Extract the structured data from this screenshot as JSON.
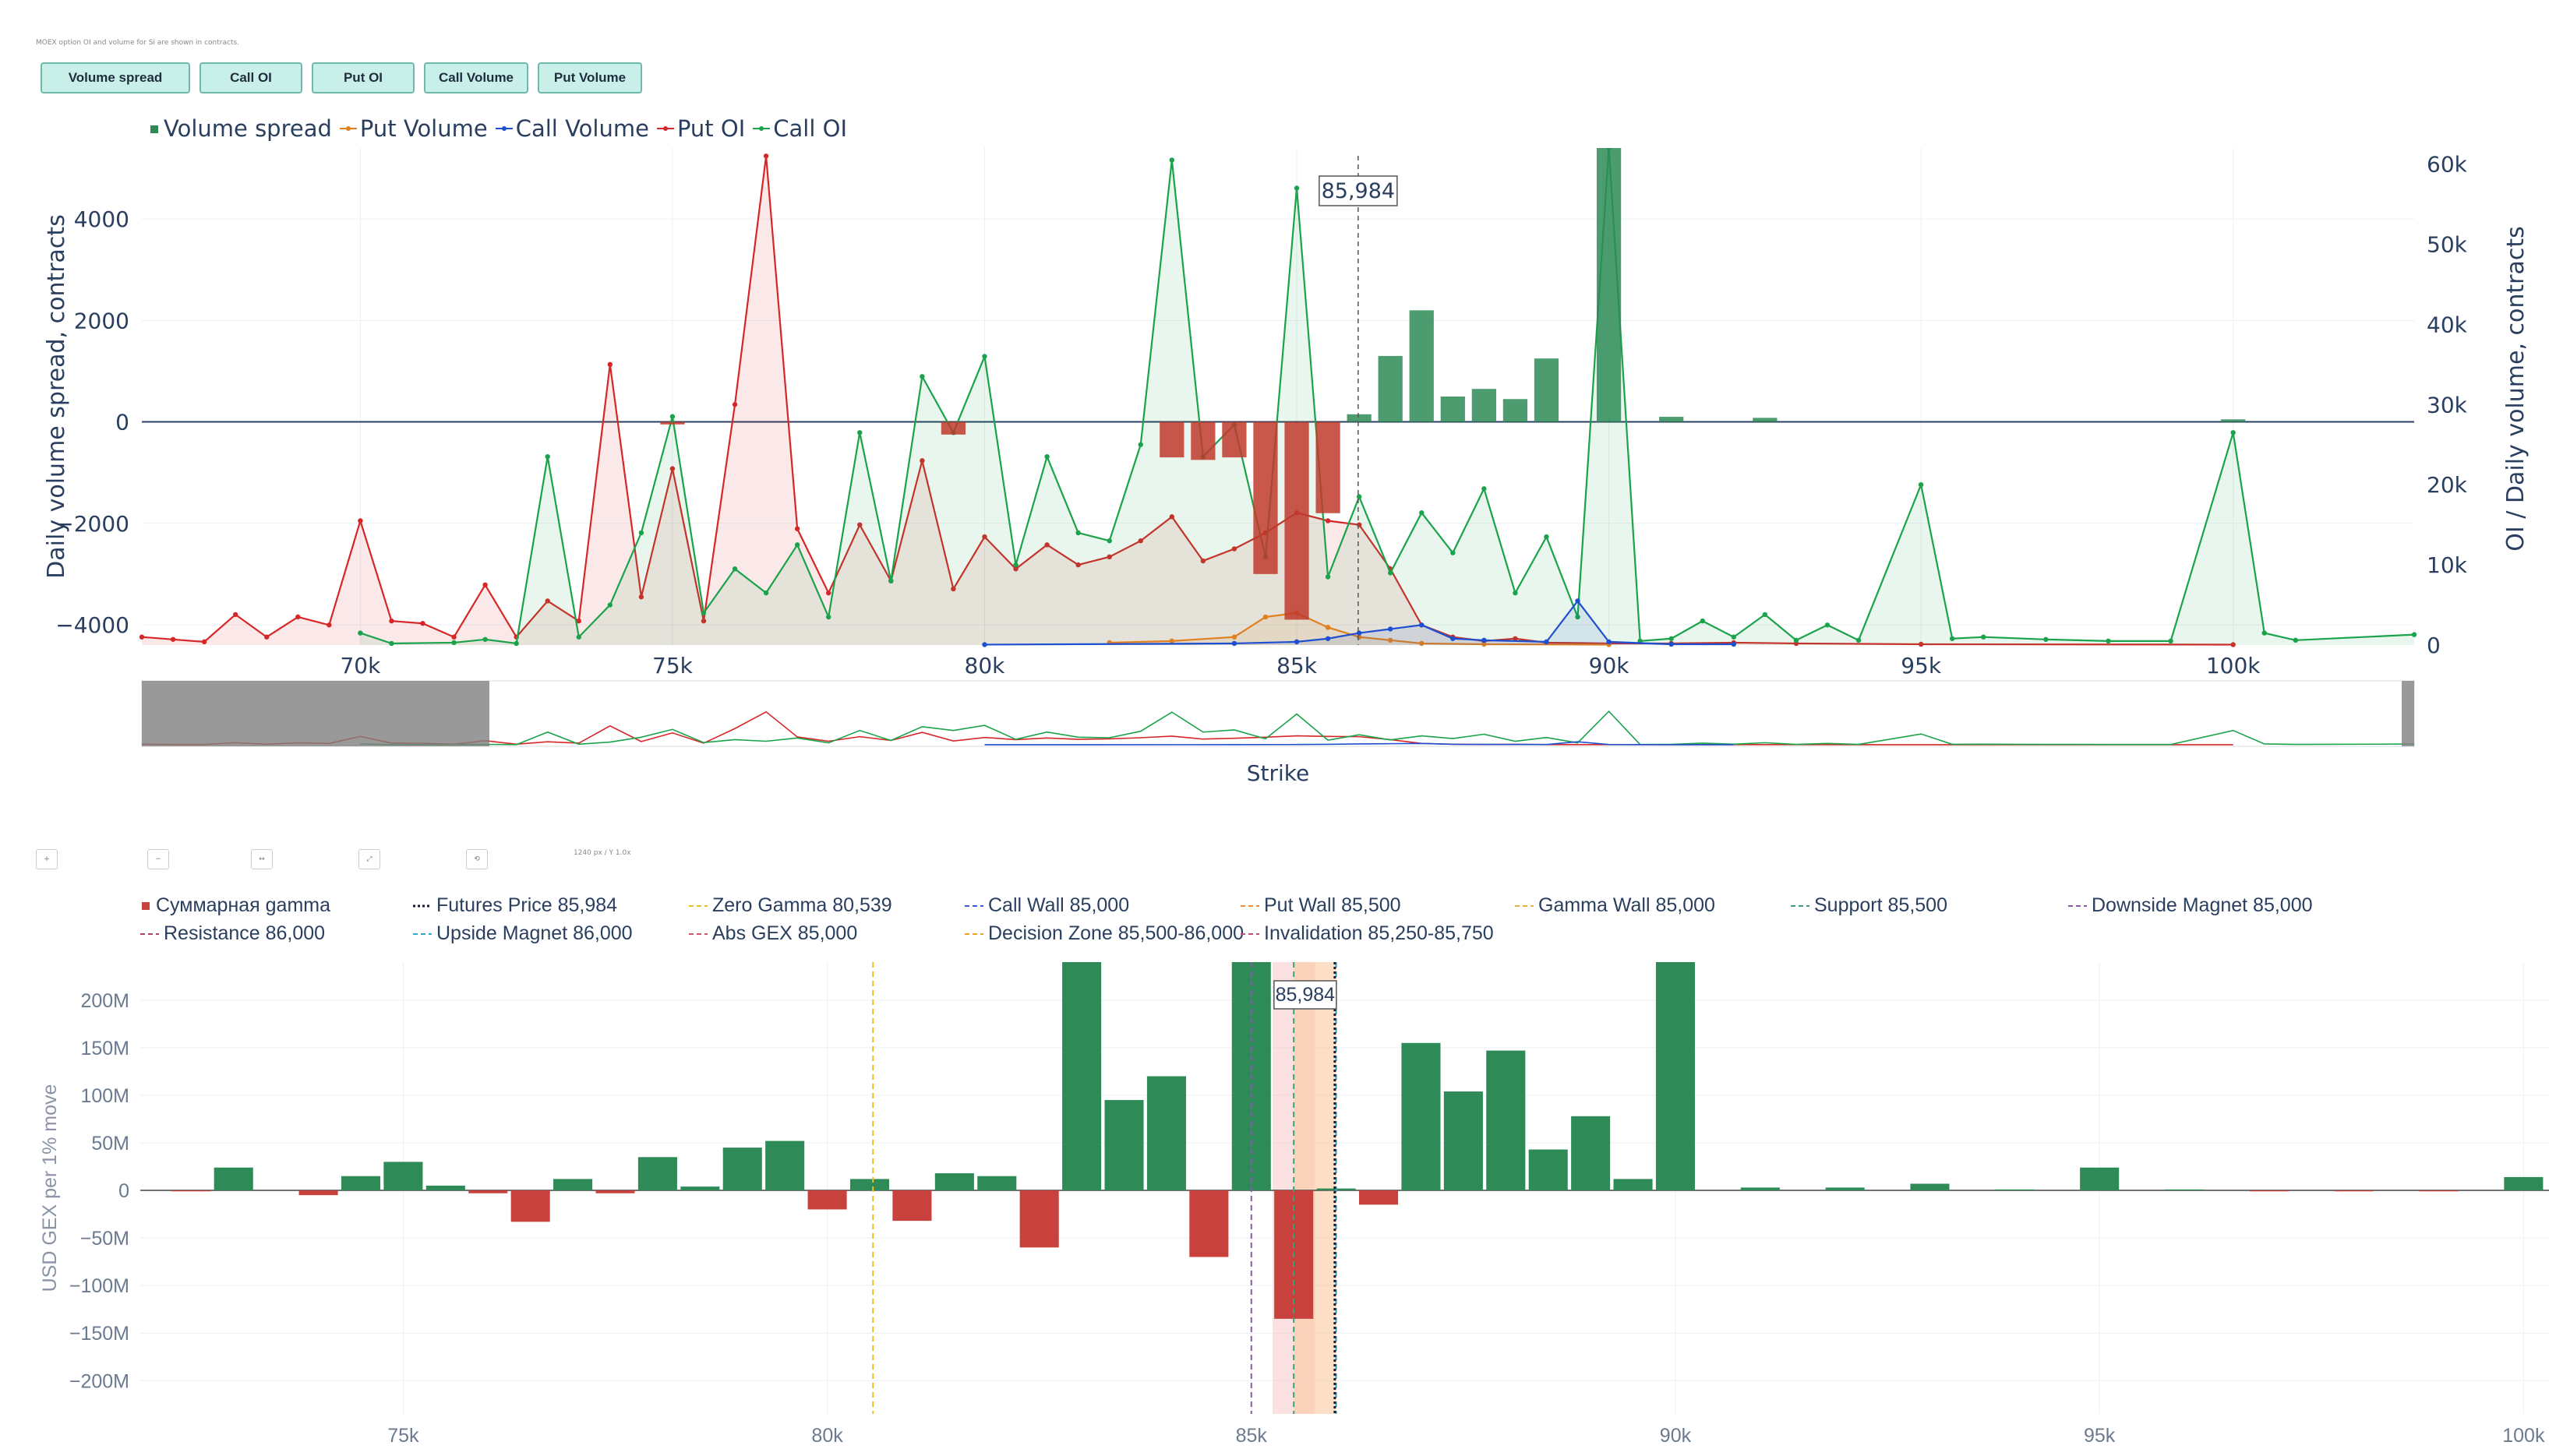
{
  "note": "MOEX option OI and volume for Si are shown in contracts.",
  "buttons": [
    "Volume spread",
    "Call OI",
    "Put OI",
    "Call Volume",
    "Put Volume"
  ],
  "colors": {
    "spread_pos": "#2e8b57",
    "spread_neg": "#c0392b",
    "put": "#d62728",
    "call": "#1aa34a",
    "put_vol": "#e0801f",
    "call_vol": "#1f4fd1",
    "gamma_pos": "#2e8b57",
    "gamma_neg": "#c9413c"
  },
  "icons": [
    "zoom-in-icon",
    "zoom-out-icon",
    "pan-icon",
    "autoscale-icon",
    "reset-icon"
  ],
  "controls_note": "1240 px / Y 1.0x",
  "chart_data": [
    {
      "type": "line",
      "legend": [
        "Volume spread",
        "Put Volume",
        "Call Volume",
        "Put OI",
        "Call OI"
      ],
      "xlabel": "Strike",
      "ylabel": "Daily volume spread, contracts",
      "y2label": "OI / Daily volume, contracts",
      "xlim": [
        66500,
        102900
      ],
      "ylim": [
        -4400,
        5400
      ],
      "y2lim": [
        0,
        62000
      ],
      "xticks": [
        "70k",
        "75k",
        "80k",
        "85k",
        "90k",
        "95k",
        "100k"
      ],
      "yticks": [
        "4000",
        "2000",
        "0",
        "−2000",
        "−4000"
      ],
      "y2ticks": [
        "60k",
        "50k",
        "40k",
        "30k",
        "20k",
        "10k",
        "0"
      ],
      "spot_label": "85,984",
      "spot": 85984,
      "spread": [
        [
          75000,
          -50
        ],
        [
          79500,
          -250
        ],
        [
          83000,
          -700
        ],
        [
          83500,
          -750
        ],
        [
          84000,
          -700
        ],
        [
          84500,
          -3000
        ],
        [
          85000,
          -3900
        ],
        [
          85500,
          -1800
        ],
        [
          86000,
          150
        ],
        [
          86500,
          1300
        ],
        [
          87000,
          2200
        ],
        [
          87500,
          500
        ],
        [
          88000,
          650
        ],
        [
          88500,
          450
        ],
        [
          89000,
          1250
        ],
        [
          90000,
          5400
        ],
        [
          91000,
          100
        ],
        [
          92500,
          80
        ],
        [
          100000,
          50
        ]
      ],
      "put_oi": [
        [
          66500,
          1000
        ],
        [
          67000,
          700
        ],
        [
          67500,
          400
        ],
        [
          68000,
          3800
        ],
        [
          68500,
          1000
        ],
        [
          69000,
          3500
        ],
        [
          69500,
          2500
        ],
        [
          70000,
          15500
        ],
        [
          70500,
          3000
        ],
        [
          71000,
          2700
        ],
        [
          71500,
          1000
        ],
        [
          72000,
          7500
        ],
        [
          72500,
          1000
        ],
        [
          73000,
          5500
        ],
        [
          73500,
          3000
        ],
        [
          74000,
          35000
        ],
        [
          74500,
          6000
        ],
        [
          75000,
          22000
        ],
        [
          75500,
          3000
        ],
        [
          76000,
          30000
        ],
        [
          76500,
          61000
        ],
        [
          77000,
          14500
        ],
        [
          77500,
          6500
        ],
        [
          78000,
          15000
        ],
        [
          78500,
          8000
        ],
        [
          79000,
          23000
        ],
        [
          79500,
          7000
        ],
        [
          80000,
          13500
        ],
        [
          80500,
          9500
        ],
        [
          81000,
          12500
        ],
        [
          81500,
          10000
        ],
        [
          82000,
          11000
        ],
        [
          82500,
          13000
        ],
        [
          83000,
          16000
        ],
        [
          83500,
          10500
        ],
        [
          84000,
          12000
        ],
        [
          84500,
          14000
        ],
        [
          85000,
          16500
        ],
        [
          85500,
          15500
        ],
        [
          86000,
          15000
        ],
        [
          86500,
          9500
        ],
        [
          87000,
          2500
        ],
        [
          87500,
          1000
        ],
        [
          88000,
          500
        ],
        [
          88500,
          800
        ],
        [
          89000,
          300
        ],
        [
          90000,
          200
        ],
        [
          91000,
          200
        ],
        [
          92000,
          300
        ],
        [
          93000,
          200
        ],
        [
          95000,
          100
        ],
        [
          100000,
          50
        ]
      ],
      "call_oi": [
        [
          70000,
          1500
        ],
        [
          70500,
          200
        ],
        [
          71500,
          300
        ],
        [
          72000,
          700
        ],
        [
          72500,
          200
        ],
        [
          73000,
          23500
        ],
        [
          73500,
          1000
        ],
        [
          74000,
          5000
        ],
        [
          74500,
          14000
        ],
        [
          75000,
          28500
        ],
        [
          75500,
          4000
        ],
        [
          76000,
          9500
        ],
        [
          76500,
          6500
        ],
        [
          77000,
          12500
        ],
        [
          77500,
          3500
        ],
        [
          78000,
          26500
        ],
        [
          78500,
          8000
        ],
        [
          79000,
          33500
        ],
        [
          79500,
          26500
        ],
        [
          80000,
          36000
        ],
        [
          80500,
          10000
        ],
        [
          81000,
          23500
        ],
        [
          81500,
          14000
        ],
        [
          82000,
          13000
        ],
        [
          82500,
          25000
        ],
        [
          83000,
          60500
        ],
        [
          83500,
          23500
        ],
        [
          84000,
          27500
        ],
        [
          84500,
          11000
        ],
        [
          85000,
          57000
        ],
        [
          85500,
          8500
        ],
        [
          86000,
          18500
        ],
        [
          86500,
          9000
        ],
        [
          87000,
          16500
        ],
        [
          87500,
          11500
        ],
        [
          88000,
          19500
        ],
        [
          88500,
          6500
        ],
        [
          89000,
          13500
        ],
        [
          89500,
          3500
        ],
        [
          90000,
          62000
        ],
        [
          90500,
          500
        ],
        [
          91000,
          800
        ],
        [
          91500,
          3000
        ],
        [
          92000,
          1000
        ],
        [
          92500,
          3800
        ],
        [
          93000,
          600
        ],
        [
          93500,
          2500
        ],
        [
          94000,
          600
        ],
        [
          95000,
          20000
        ],
        [
          95500,
          800
        ],
        [
          96000,
          1000
        ],
        [
          97000,
          700
        ],
        [
          98000,
          500
        ],
        [
          99000,
          500
        ],
        [
          100000,
          26500
        ],
        [
          100500,
          1500
        ],
        [
          101000,
          600
        ],
        [
          102900,
          1300
        ]
      ],
      "put_volume": [
        [
          82000,
          300
        ],
        [
          83000,
          500
        ],
        [
          84000,
          1000
        ],
        [
          84500,
          3500
        ],
        [
          85000,
          4000
        ],
        [
          85500,
          2200
        ],
        [
          86000,
          1000
        ],
        [
          86500,
          600
        ],
        [
          87000,
          200
        ],
        [
          88000,
          100
        ],
        [
          90000,
          50
        ]
      ],
      "call_volume": [
        [
          80000,
          50
        ],
        [
          84000,
          200
        ],
        [
          85000,
          400
        ],
        [
          85500,
          800
        ],
        [
          86000,
          1500
        ],
        [
          86500,
          2000
        ],
        [
          87000,
          2500
        ],
        [
          87500,
          800
        ],
        [
          88000,
          600
        ],
        [
          89000,
          400
        ],
        [
          89500,
          5500
        ],
        [
          90000,
          400
        ],
        [
          91000,
          100
        ],
        [
          92000,
          100
        ]
      ]
    },
    {
      "type": "bar",
      "legend": [
        "Суммарная gamma",
        "Futures Price 85,984",
        "Zero Gamma 80,539",
        "Call Wall 85,000",
        "Put Wall 85,500",
        "Gamma Wall 85,000",
        "Support 85,500",
        "Downside Magnet 85,000",
        "Resistance 86,000",
        "Upside Magnet 86,000",
        "Abs GEX 85,000",
        "Decision Zone 85,500-86,000",
        "Invalidation 85,250-85,750"
      ],
      "ylabel": "USD GEX per 1% move",
      "xlim": [
        71900,
        100300
      ],
      "ylim": [
        -235,
        240
      ],
      "xticks": [
        "75k",
        "80k",
        "85k",
        "90k",
        "95k",
        "100k"
      ],
      "yticks": [
        "200M",
        "150M",
        "100M",
        "50M",
        "0",
        "−50M",
        "−100M",
        "−150M",
        "−200M"
      ],
      "spot_label": "85,984",
      "levels": {
        "futures": 85984,
        "zero_gamma": 80539,
        "call_wall": 85000,
        "put_wall": 85500,
        "gamma_wall": 85000,
        "support": 85500,
        "downside_magnet": 85000,
        "resistance": 86000,
        "upside_magnet": 86000,
        "abs_gex": 85000,
        "decision_zone": [
          85500,
          86000
        ],
        "invalidation": [
          85250,
          85750
        ]
      },
      "bars": [
        [
          72500,
          -1
        ],
        [
          73000,
          24
        ],
        [
          74000,
          -5
        ],
        [
          74500,
          15
        ],
        [
          75000,
          30
        ],
        [
          75500,
          5
        ],
        [
          76000,
          -3
        ],
        [
          76500,
          -33
        ],
        [
          77000,
          12
        ],
        [
          77500,
          -3
        ],
        [
          78000,
          35
        ],
        [
          78500,
          4
        ],
        [
          79000,
          45
        ],
        [
          79500,
          52
        ],
        [
          80000,
          -20
        ],
        [
          80500,
          12
        ],
        [
          81000,
          -32
        ],
        [
          81500,
          18
        ],
        [
          82000,
          15
        ],
        [
          82500,
          -60
        ],
        [
          83000,
          240
        ],
        [
          83500,
          95
        ],
        [
          84000,
          120
        ],
        [
          84500,
          -70
        ],
        [
          85000,
          240
        ],
        [
          85500,
          -135
        ],
        [
          86000,
          2
        ],
        [
          86500,
          -15
        ],
        [
          87000,
          155
        ],
        [
          87500,
          104
        ],
        [
          88000,
          147
        ],
        [
          88500,
          43
        ],
        [
          89000,
          78
        ],
        [
          89500,
          12
        ],
        [
          90000,
          240
        ],
        [
          91000,
          3
        ],
        [
          92000,
          3
        ],
        [
          93000,
          7
        ],
        [
          94000,
          1
        ],
        [
          95000,
          24
        ],
        [
          96000,
          1
        ],
        [
          97000,
          -1
        ],
        [
          98000,
          -1
        ],
        [
          99000,
          -1
        ],
        [
          100000,
          14
        ]
      ]
    }
  ]
}
